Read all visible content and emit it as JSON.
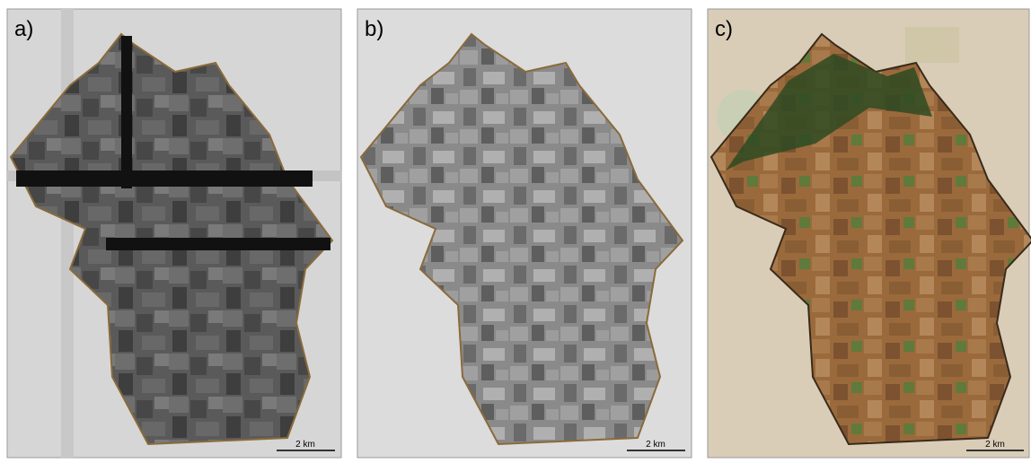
{
  "panels": [
    {
      "label": "a)",
      "scale_bar": "2 km"
    },
    {
      "label": "b)",
      "scale_bar": "2 km"
    },
    {
      "label": "c)",
      "scale_bar": "2 km"
    }
  ]
}
